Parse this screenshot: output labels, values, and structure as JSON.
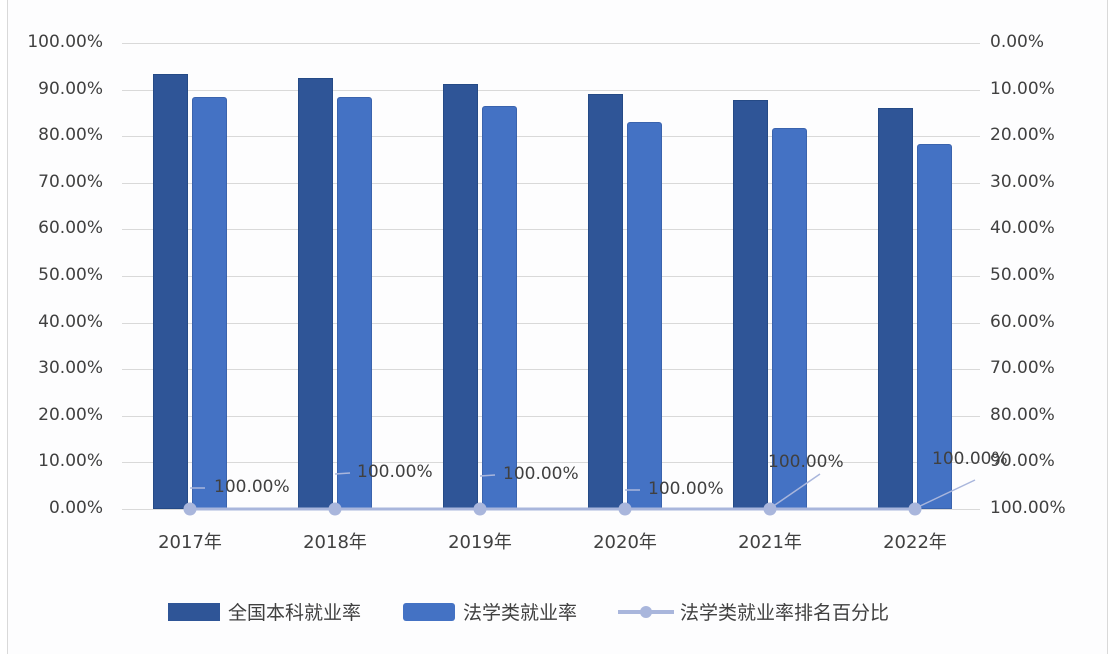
{
  "chart_data": {
    "type": "bar",
    "title": "",
    "categories": [
      "2017年",
      "2018年",
      "2019年",
      "2020年",
      "2021年",
      "2022年"
    ],
    "series": [
      {
        "name": "全国本科就业率",
        "type": "bar",
        "axis": "left",
        "color": "#2f5597",
        "values": [
          0.933,
          0.925,
          0.912,
          0.891,
          0.878,
          0.861
        ]
      },
      {
        "name": "法学类就业率",
        "type": "bar",
        "axis": "left",
        "color": "#4472c4",
        "values": [
          0.884,
          0.884,
          0.865,
          0.83,
          0.818,
          0.783
        ]
      },
      {
        "name": "法学类就业率排名百分比",
        "type": "line",
        "axis": "right",
        "color": "#a9b6dc",
        "values": [
          1.0,
          1.0,
          1.0,
          1.0,
          1.0,
          1.0
        ],
        "data_labels": [
          "100.00%",
          "100.00%",
          "100.00%",
          "100.00%",
          "100.00%",
          "100.00%"
        ]
      }
    ],
    "y_left": {
      "ylim": [
        0,
        1
      ],
      "ticks": [
        "0.00%",
        "10.00%",
        "20.00%",
        "30.00%",
        "40.00%",
        "50.00%",
        "60.00%",
        "70.00%",
        "80.00%",
        "90.00%",
        "100.00%"
      ]
    },
    "y_right": {
      "ylim": [
        0,
        1
      ],
      "reversed": true,
      "ticks": [
        "0.00%",
        "10.00%",
        "20.00%",
        "30.00%",
        "40.00%",
        "50.00%",
        "60.00%",
        "70.00%",
        "80.00%",
        "90.00%",
        "100.00%"
      ]
    },
    "xlabel": "",
    "ylabel": "",
    "grid": true,
    "legend_position": "bottom"
  },
  "legend": [
    "全国本科就业率",
    "法学类就业率",
    "法学类就业率排名百分比"
  ]
}
